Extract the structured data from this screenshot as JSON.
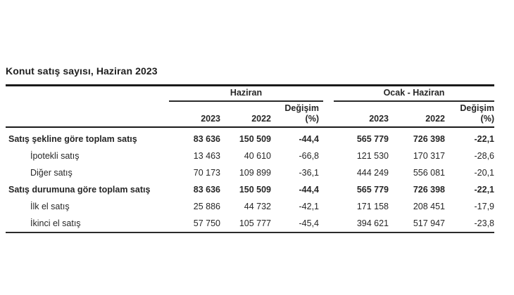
{
  "page": {
    "title": "Konut satış sayısı, Haziran 2023"
  },
  "table": {
    "group_headers": [
      "Haziran",
      "Ocak - Haziran"
    ],
    "change_label": "Değişim",
    "percent_label": "(%)",
    "year_headers": [
      "2023",
      "2022"
    ],
    "rows": [
      {
        "label": "Satış şekline göre toplam satış",
        "values": [
          "83 636",
          "150 509",
          "-44,4",
          "565 779",
          "726 398",
          "-22,1"
        ]
      },
      {
        "label": "İpotekli satış",
        "values": [
          "13 463",
          "40 610",
          "-66,8",
          "121 530",
          "170 317",
          "-28,6"
        ]
      },
      {
        "label": "Diğer satış",
        "values": [
          "70 173",
          "109 899",
          "-36,1",
          "444 249",
          "556 081",
          "-20,1"
        ]
      },
      {
        "label": "Satış durumuna göre toplam satış",
        "values": [
          "83 636",
          "150 509",
          "-44,4",
          "565 779",
          "726 398",
          "-22,1"
        ]
      },
      {
        "label": "İlk el satış",
        "values": [
          "25 886",
          "44 732",
          "-42,1",
          "171 158",
          "208 451",
          "-17,9"
        ]
      },
      {
        "label": "İkinci el satış",
        "values": [
          "57 750",
          "105 777",
          "-45,4",
          "394 621",
          "517 947",
          "-23,8"
        ]
      }
    ],
    "colors": {
      "text": "#262626",
      "rule": "#1a1a1a",
      "background": "#ffffff"
    }
  }
}
